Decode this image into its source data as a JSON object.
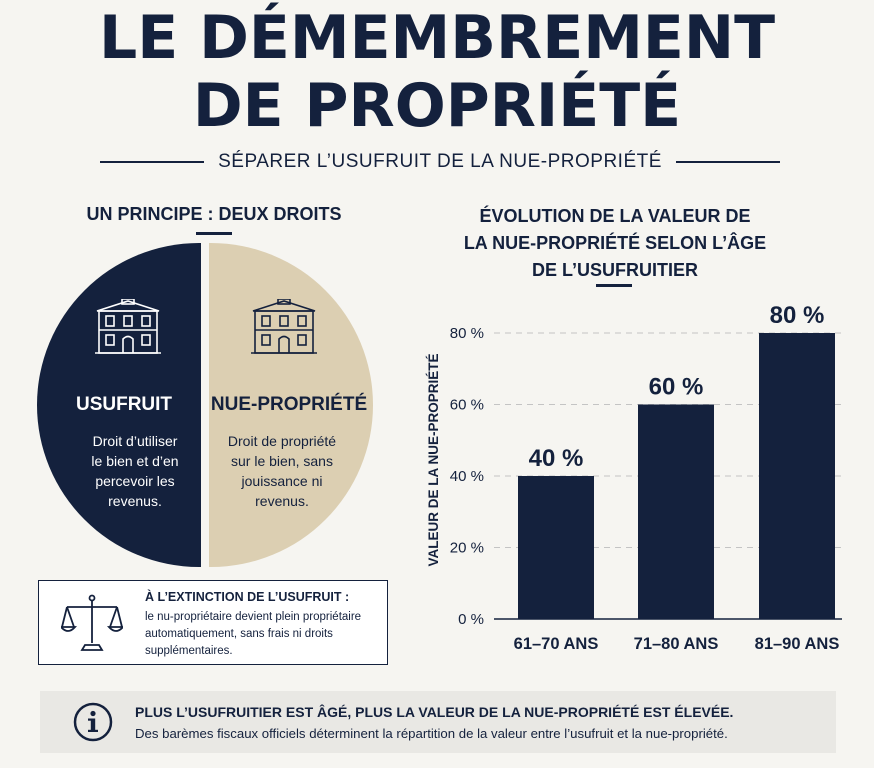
{
  "header": {
    "title_line1": "LE DÉMEMBREMENT",
    "title_line2": "DE PROPRIÉTÉ",
    "subtitle": "SÉPARER L’USUFRUIT DE LA NUE-PROPRIÉTÉ"
  },
  "principle": {
    "heading": "UN PRINCIPE : DEUX DROITS",
    "usufruit": {
      "icon": "building-icon",
      "title": "USUFRUIT",
      "desc_lines": [
        "Droit d’utiliser",
        "le bien et d’en",
        "percevoir les",
        "revenus."
      ],
      "color": "#14213d"
    },
    "nue_propriete": {
      "icon": "building-icon",
      "title": "NUE-PROPRIÉTÉ",
      "desc_lines": [
        "Droit de propriété",
        "sur le bien, sans",
        "jouissance ni",
        "revenus."
      ],
      "color": "#dccfb2"
    },
    "extinction": {
      "icon": "scales-icon",
      "title": "À L’EXTINCTION DE L’USUFRUIT :",
      "text_lines": [
        "le nu-propriétaire devient plein propriétaire",
        "automatiquement, sans frais ni droits",
        "supplémentaires."
      ]
    }
  },
  "chart_data": {
    "type": "bar",
    "title_lines": [
      "ÉVOLUTION DE LA VALEUR DE",
      "LA NUE-PROPRIÉTÉ SELON L’ÂGE",
      "DE L’USUFRUITIER"
    ],
    "ylabel": "VALEUR DE LA NUE-PROPRIÉTÉ",
    "xlabel": "",
    "categories": [
      "61–70 ANS",
      "71–80 ANS",
      "81–90 ANS"
    ],
    "values": [
      40,
      60,
      80
    ],
    "data_labels": [
      "40 %",
      "60 %",
      "80 %"
    ],
    "yticks": [
      0,
      20,
      40,
      60,
      80
    ],
    "ytick_labels": [
      "0 %",
      "20 %",
      "40 %",
      "60 %",
      "80 %"
    ],
    "ylim": [
      0,
      80
    ],
    "grid": true,
    "bar_color": "#14213d"
  },
  "footer": {
    "icon": "info-icon",
    "title": "PLUS L’USUFRUITIER EST ÂGÉ, PLUS LA VALEUR DE LA NUE-PROPRIÉTÉ EST ÉLEVÉE.",
    "text": "Des barèmes fiscaux officiels déterminent la répartition de la valeur entre l’usufruit et la nue-propriété."
  }
}
